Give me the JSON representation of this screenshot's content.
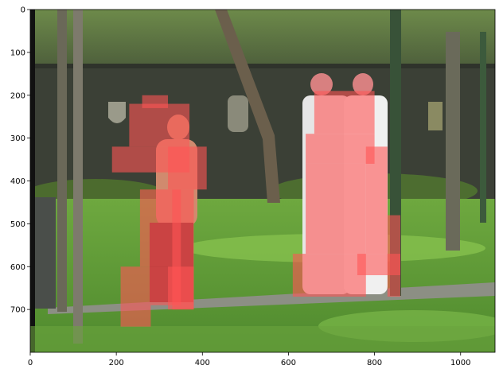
{
  "figure": {
    "x_ticks": [
      "0",
      "200",
      "400",
      "600",
      "800",
      "1000"
    ],
    "y_ticks": [
      "0",
      "100",
      "200",
      "300",
      "400",
      "500",
      "600",
      "700"
    ],
    "xlim": [
      0,
      1080
    ],
    "ylim": [
      800,
      0
    ],
    "image_description_icon": "park-photo-icon",
    "colors": {
      "mask": "#ff5555",
      "axis": "#000000",
      "grass": "#5f9a3a",
      "wall": "#3a3f36"
    }
  },
  "segmentation_masks": [
    {
      "label_hidden": true,
      "cells": [
        [
          190,
          320,
          370,
          380
        ],
        [
          230,
          220,
          370,
          320
        ],
        [
          260,
          200,
          320,
          230
        ],
        [
          320,
          320,
          380,
          420
        ],
        [
          380,
          320,
          410,
          420
        ],
        [
          255,
          420,
          350,
          600
        ],
        [
          330,
          420,
          380,
          700
        ],
        [
          210,
          600,
          350,
          690
        ],
        [
          210,
          690,
          280,
          740
        ],
        [
          320,
          600,
          380,
          700
        ]
      ]
    },
    {
      "label_hidden": true,
      "cells": [
        [
          660,
          190,
          800,
          290
        ],
        [
          640,
          290,
          800,
          360
        ],
        [
          640,
          360,
          780,
          570
        ],
        [
          610,
          570,
          780,
          670
        ],
        [
          780,
          320,
          830,
          570
        ],
        [
          830,
          480,
          860,
          670
        ],
        [
          760,
          570,
          860,
          620
        ]
      ]
    }
  ]
}
